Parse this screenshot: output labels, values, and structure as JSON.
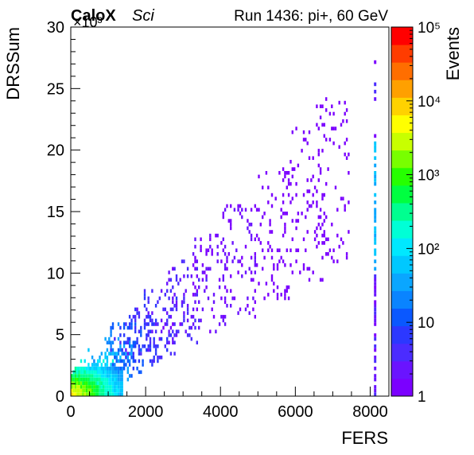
{
  "chart_data": {
    "type": "heatmap",
    "label_bold": "CaloX",
    "label_italic": "Sci",
    "run_label": "Run 1436: pi+, 60 GeV",
    "xlabel": "FERS",
    "ylabel": "DRSSum",
    "y_multiplier": "×10³",
    "xlim": [
      0,
      8500
    ],
    "ylim": [
      0,
      30
    ],
    "x_ticks": [
      0,
      2000,
      4000,
      6000,
      8000
    ],
    "x_tick_labels": [
      "0",
      "2000",
      "4000",
      "6000",
      "8000"
    ],
    "y_ticks": [
      0,
      5,
      10,
      15,
      20,
      25,
      30
    ],
    "y_tick_labels": [
      "0",
      "5",
      "10",
      "15",
      "20",
      "25",
      "30"
    ],
    "z_label": "Events",
    "z_scale": "log",
    "z_range": [
      1,
      100000
    ],
    "z_tick_labels": [
      "1",
      "10",
      "10²",
      "10³",
      "10⁴",
      "10⁵"
    ],
    "palette": [
      "#7b00ff",
      "#6a14ff",
      "#4b2cff",
      "#2c38ff",
      "#0a58ff",
      "#0a84ff",
      "#0aa6ff",
      "#00c8ff",
      "#00e8ff",
      "#00ffd6",
      "#00ff90",
      "#00ff40",
      "#26ff00",
      "#78ff00",
      "#c8ff00",
      "#ffff00",
      "#ffd200",
      "#ffa000",
      "#ff6e00",
      "#ff3c00",
      "#ff0000"
    ],
    "bins": {
      "note_x_unit": "FERS counts",
      "note_y_unit": "DRSSum ×10³",
      "core": [
        {
          "x": 150,
          "y": 0.4,
          "z": 4000
        },
        {
          "x": 300,
          "y": 0.8,
          "z": 900
        },
        {
          "x": 500,
          "y": 1.2,
          "z": 300
        },
        {
          "x": 700,
          "y": 1.7,
          "z": 120
        },
        {
          "x": 900,
          "y": 2.2,
          "z": 60
        },
        {
          "x": 1200,
          "y": 3.0,
          "z": 25
        },
        {
          "x": 1500,
          "y": 3.8,
          "z": 12
        },
        {
          "x": 1900,
          "y": 4.8,
          "z": 6
        },
        {
          "x": 2400,
          "y": 6.0,
          "z": 4
        },
        {
          "x": 3000,
          "y": 7.6,
          "z": 3
        },
        {
          "x": 3700,
          "y": 9.2,
          "z": 2
        },
        {
          "x": 4500,
          "y": 11.0,
          "z": 1.5
        },
        {
          "x": 5400,
          "y": 13.2,
          "z": 1
        },
        {
          "x": 6300,
          "y": 15.5,
          "z": 1
        },
        {
          "x": 7000,
          "y": 17.5,
          "z": 1
        }
      ],
      "saturation_x": 8100,
      "saturation_y_range": [
        0,
        28
      ]
    }
  }
}
